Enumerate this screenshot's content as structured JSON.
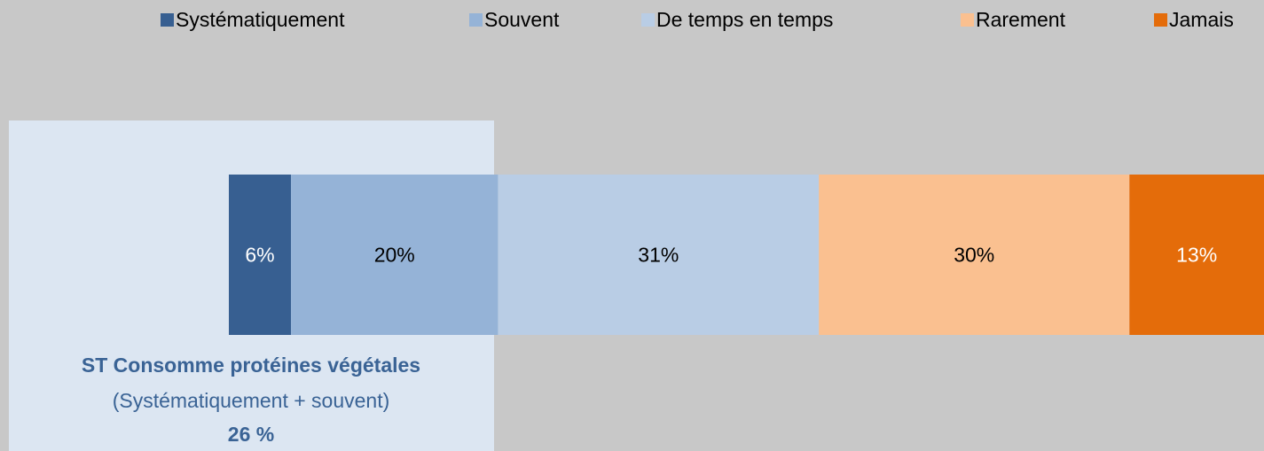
{
  "chart_data": {
    "type": "bar",
    "orientation": "horizontal",
    "stacked": true,
    "categories": [
      null
    ],
    "series": [
      {
        "name": "Systématiquement",
        "color": "#375f91",
        "values": [
          6
        ],
        "value_labels": [
          "6%"
        ]
      },
      {
        "name": "Souvent",
        "color": "#95b3d7",
        "values": [
          20
        ],
        "value_labels": [
          "20%"
        ]
      },
      {
        "name": "De temps en temps",
        "color": "#b9cde5",
        "values": [
          31
        ],
        "value_labels": [
          "31%"
        ]
      },
      {
        "name": "Rarement",
        "color": "#fac090",
        "values": [
          30
        ],
        "value_labels": [
          "30%"
        ]
      },
      {
        "name": "Jamais",
        "color": "#e46c0a",
        "values": [
          13
        ],
        "value_labels": [
          "13%"
        ]
      }
    ],
    "xlim": [
      0,
      100
    ],
    "legend": "top",
    "annotation": {
      "title": "ST Consomme protéines végétales",
      "subtitle": "(Systématiquement + souvent)",
      "value": "26 %"
    }
  }
}
